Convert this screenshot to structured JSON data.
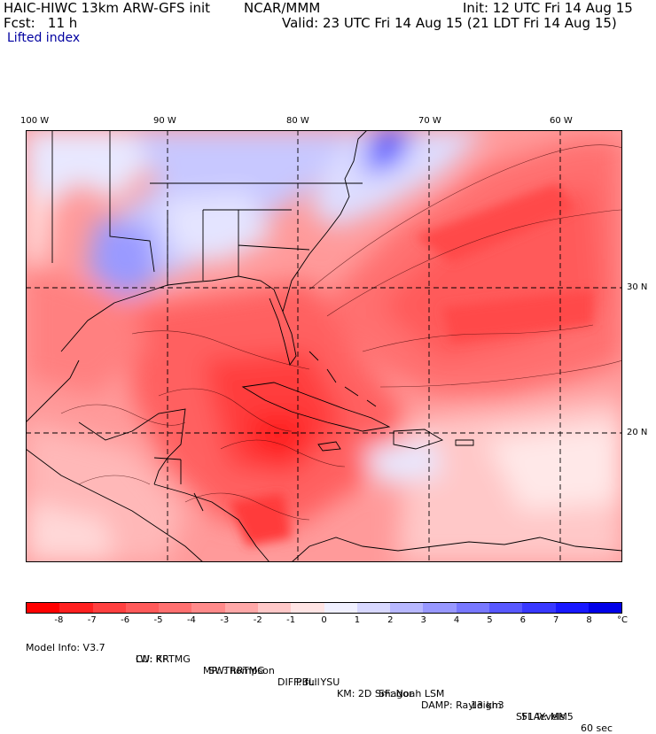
{
  "header": {
    "model": "HAIC-HIWC 13km ARW-GFS init",
    "org": "NCAR/MMM",
    "init": "Init: 12 UTC Fri 14 Aug 15",
    "fcst": "Fcst:   11 h",
    "valid": "Valid: 23 UTC Fri 14 Aug 15 (21 LDT Fri 14 Aug 15)",
    "field": "Lifted index"
  },
  "map": {
    "lon_labels": [
      "100 W",
      "90 W",
      "80 W",
      "70 W",
      "60 W"
    ],
    "lat_labels": [
      "30 N",
      "20 N"
    ]
  },
  "colorbar": {
    "labels": [
      "-8",
      "-7",
      "-6",
      "-5",
      "-4",
      "-3",
      "-2",
      "-1",
      "0",
      "1",
      "2",
      "3",
      "4",
      "5",
      "6",
      "7",
      "8"
    ],
    "unit": "°C",
    "colors": [
      "#ff0000",
      "#ff2020",
      "#ff4040",
      "#ff5a5a",
      "#ff7070",
      "#ff8a8a",
      "#ffa8a8",
      "#ffc8c8",
      "#ffe4e4",
      "#f0f0ff",
      "#d8d8ff",
      "#b8b8ff",
      "#9898ff",
      "#7878ff",
      "#5858ff",
      "#3838ff",
      "#1818ff",
      "#0000e8"
    ]
  },
  "model_info": {
    "line1": {
      "version": "Model Info: V3.7",
      "cu": "CU: KF",
      "mp": "MP: Thompson",
      "pbl": "PBL: YSU",
      "sf": "SF: Noah LSM",
      "res": "13 km",
      "levels": "51 levels",
      "dt": "60 sec"
    },
    "line2": {
      "lw": "LW: RRTMG",
      "sw": "SW: RRTMG",
      "diff": "DIFF: full",
      "km": "KM: 2D Smagor",
      "damp": "DAMP: Rayleigh3",
      "sflay": "SFLAY: MM5"
    }
  }
}
